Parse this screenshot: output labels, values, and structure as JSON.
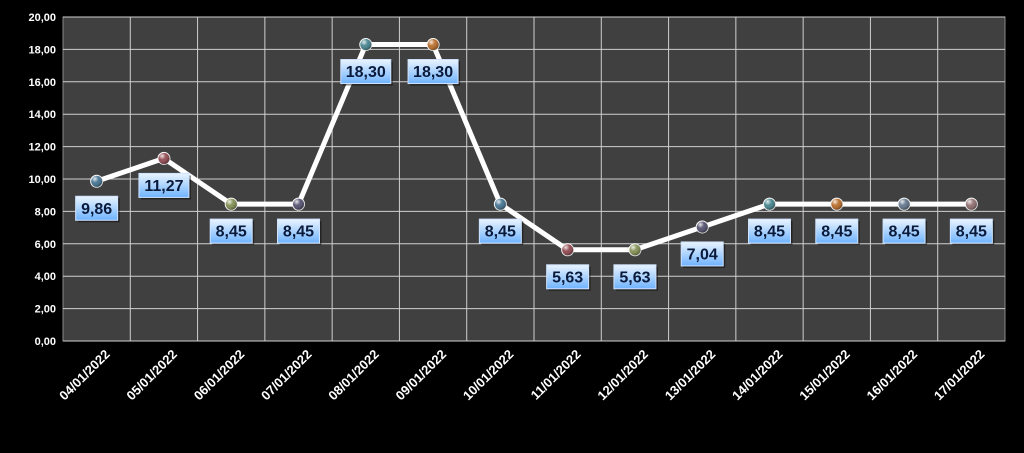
{
  "chart_data": {
    "type": "line",
    "categories": [
      "04/01/2022",
      "05/01/2022",
      "06/01/2022",
      "07/01/2022",
      "08/01/2022",
      "09/01/2022",
      "10/01/2022",
      "11/01/2022",
      "12/01/2022",
      "13/01/2022",
      "14/01/2022",
      "15/01/2022",
      "16/01/2022",
      "17/01/2022"
    ],
    "values": [
      9.86,
      11.27,
      8.45,
      8.45,
      18.3,
      18.3,
      8.45,
      5.63,
      5.63,
      7.04,
      8.45,
      8.45,
      8.45,
      8.45
    ],
    "data_labels": [
      "9,86",
      "11,27",
      "8,45",
      "8,45",
      "18,30",
      "18,30",
      "8,45",
      "5,63",
      "5,63",
      "7,04",
      "8,45",
      "8,45",
      "8,45",
      "8,45"
    ],
    "y_ticks": [
      "0,00",
      "2,00",
      "4,00",
      "6,00",
      "8,00",
      "10,00",
      "12,00",
      "14,00",
      "16,00",
      "18,00",
      "20,00"
    ],
    "ylim": [
      0,
      20
    ],
    "grid": true,
    "colors": {
      "background": "#000000",
      "plot_area": "#404040",
      "gridline": "#cfcfcf",
      "line": "#ffffff",
      "label_box_top": "#eaf4ff",
      "label_box_bottom": "#6fb3ff",
      "label_text": "#0a1a3a",
      "marker_colors": [
        "#3a6d8c",
        "#8c3f47",
        "#7c8a4a",
        "#4a4868",
        "#3b7d88",
        "#b5651d",
        "#3a6d8c",
        "#8c3f47",
        "#7c8a4a",
        "#4a4868",
        "#3b7d88",
        "#b5651d",
        "#5a6f88",
        "#8c6a6a"
      ]
    }
  }
}
